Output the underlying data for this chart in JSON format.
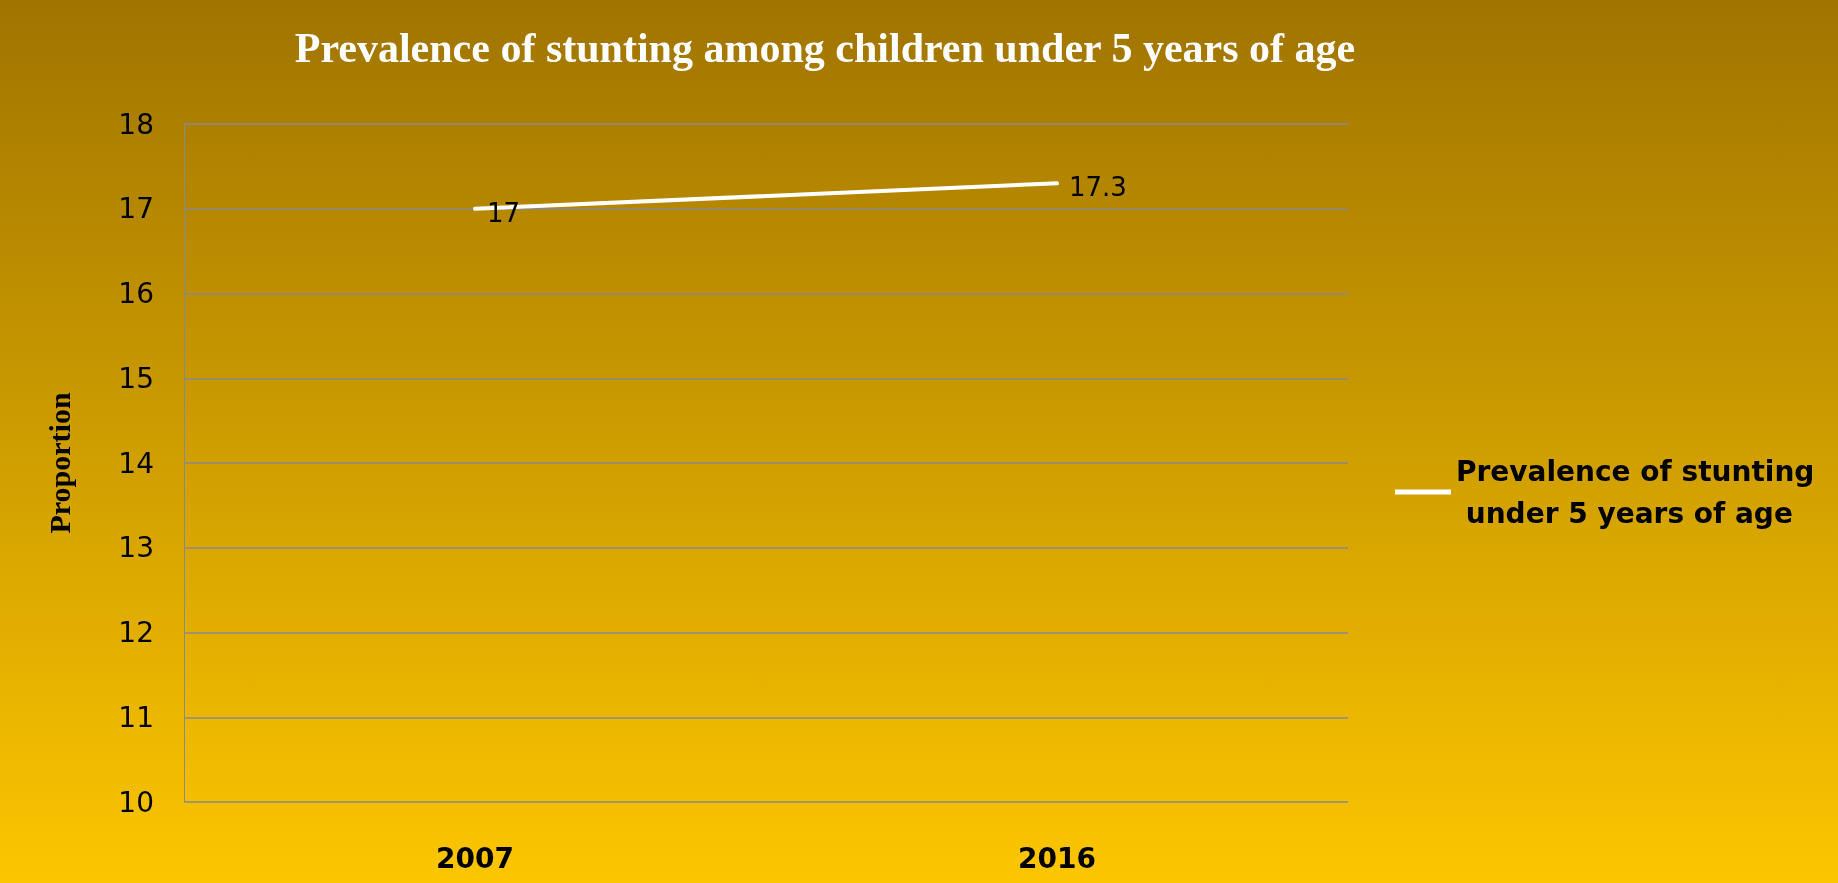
{
  "chart_data": {
    "type": "line",
    "title": "Prevalence of stunting among children under 5 years of age",
    "ylabel": "Proportion",
    "categories": [
      "2007",
      "2016"
    ],
    "series": [
      {
        "name": "Prevalence of stunting under 5 years of age",
        "color": "#ffffff",
        "values": [
          17,
          17.3
        ]
      }
    ],
    "ylim": [
      10,
      18
    ],
    "yticks": [
      10,
      11,
      12,
      13,
      14,
      15,
      16,
      17,
      18
    ],
    "grid": "y",
    "legend": "right",
    "marker": "none",
    "line_style": "solid",
    "data_labels": true
  }
}
